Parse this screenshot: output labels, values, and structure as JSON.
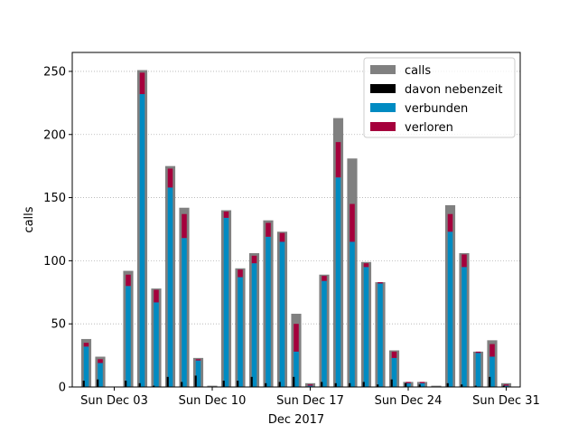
{
  "chart_data": {
    "type": "bar",
    "xlabel": "Dec 2017",
    "ylabel": "calls",
    "ylim": [
      0,
      265
    ],
    "yticks": [
      0,
      50,
      100,
      150,
      200,
      250
    ],
    "xticks": [
      {
        "day": 3,
        "label": "Sun Dec 03"
      },
      {
        "day": 10,
        "label": "Sun Dec 10"
      },
      {
        "day": 17,
        "label": "Sun Dec 17"
      },
      {
        "day": 24,
        "label": "Sun Dec 24"
      },
      {
        "day": 31,
        "label": "Sun Dec 31"
      }
    ],
    "grid": "horizontal-dotted",
    "legend_position": "top-right",
    "days": [
      1,
      2,
      3,
      4,
      5,
      6,
      7,
      8,
      9,
      10,
      11,
      12,
      13,
      14,
      15,
      16,
      17,
      18,
      19,
      20,
      21,
      22,
      23,
      24,
      25,
      26,
      27,
      28,
      29,
      30,
      31
    ],
    "series": [
      {
        "name": "calls",
        "color": "#808080",
        "values": [
          38,
          24,
          0,
          92,
          251,
          78,
          175,
          142,
          23,
          1,
          140,
          94,
          106,
          132,
          123,
          58,
          3,
          89,
          213,
          181,
          99,
          83,
          29,
          4,
          4,
          1,
          144,
          106,
          28,
          37,
          3
        ]
      },
      {
        "name": "davon nebenzeit",
        "color": "#000000",
        "values": [
          5,
          6,
          0,
          5,
          3,
          1,
          8,
          4,
          9,
          0,
          5,
          5,
          8,
          3,
          4,
          8,
          0,
          4,
          3,
          3,
          4,
          2,
          6,
          3,
          2,
          0,
          3,
          2,
          1,
          8,
          1
        ]
      },
      {
        "name": "verbunden",
        "color": "#008bc2",
        "values": [
          32,
          19,
          0,
          80,
          232,
          67,
          158,
          118,
          21,
          0,
          134,
          87,
          98,
          119,
          115,
          28,
          1,
          84,
          166,
          115,
          95,
          82,
          23,
          3,
          3,
          0,
          123,
          95,
          27,
          24,
          1
        ]
      },
      {
        "name": "verloren",
        "color": "#a5003c",
        "values": [
          3,
          3,
          0,
          9,
          17,
          10,
          15,
          19,
          1,
          0,
          5,
          6,
          6,
          11,
          7,
          22,
          1,
          4,
          28,
          30,
          3,
          1,
          5,
          1,
          1,
          0,
          14,
          10,
          1,
          10,
          1
        ]
      }
    ]
  }
}
